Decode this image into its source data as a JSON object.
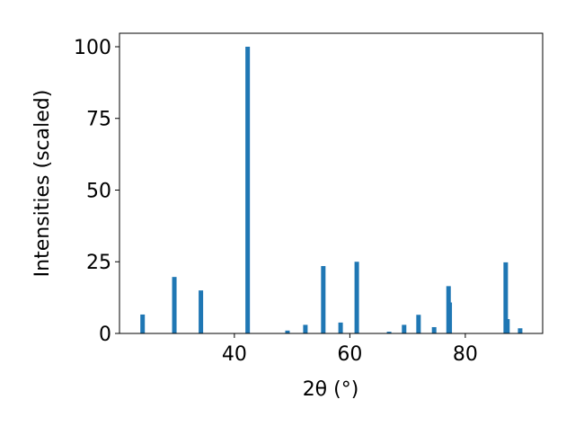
{
  "chart_data": {
    "type": "bar",
    "xlabel": "2θ (°)",
    "ylabel": "Intensities (scaled)",
    "x": [
      24.1,
      29.6,
      34.2,
      42.3,
      49.2,
      52.3,
      55.4,
      58.4,
      61.2,
      66.8,
      69.4,
      71.9,
      74.6,
      77.1,
      77.3,
      87.0,
      87.3,
      89.5
    ],
    "values": [
      6.6,
      19.7,
      15,
      100,
      1,
      3,
      23.5,
      3.8,
      25,
      0.6,
      3,
      6.5,
      2.2,
      16.5,
      10.8,
      24.8,
      5,
      1.8
    ],
    "color": "#1f77b4",
    "xlim": [
      20.1,
      93.4
    ],
    "xticks": [
      40,
      60,
      80
    ],
    "ylim": [
      0,
      104.7
    ],
    "yticks": [
      0,
      25,
      50,
      75,
      100
    ]
  }
}
